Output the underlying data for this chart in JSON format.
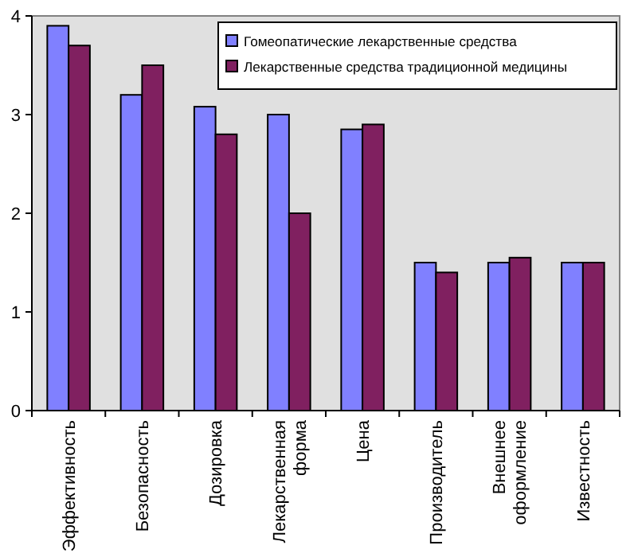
{
  "chart_data": {
    "type": "bar",
    "categories": [
      "Эффективность",
      "Безопасность",
      "Дозировка",
      "Лекарственная\nформа",
      "Цена",
      "Производитель",
      "Внешнее\nоформление",
      "Известность"
    ],
    "series": [
      {
        "name": "Гомеопатические лекарственные средства",
        "color": "#8080ff",
        "values": [
          3.9,
          3.2,
          3.08,
          3.0,
          2.85,
          1.5,
          1.5,
          1.5
        ]
      },
      {
        "name": "Лекарственные средства традиционной медицины",
        "color": "#802060",
        "values": [
          3.7,
          3.5,
          2.8,
          2.0,
          2.9,
          1.4,
          1.55,
          1.5
        ]
      }
    ],
    "ylim": [
      0,
      4
    ],
    "yticks": [
      0,
      1,
      2,
      3,
      4
    ],
    "grid": false,
    "legend": "top right"
  }
}
